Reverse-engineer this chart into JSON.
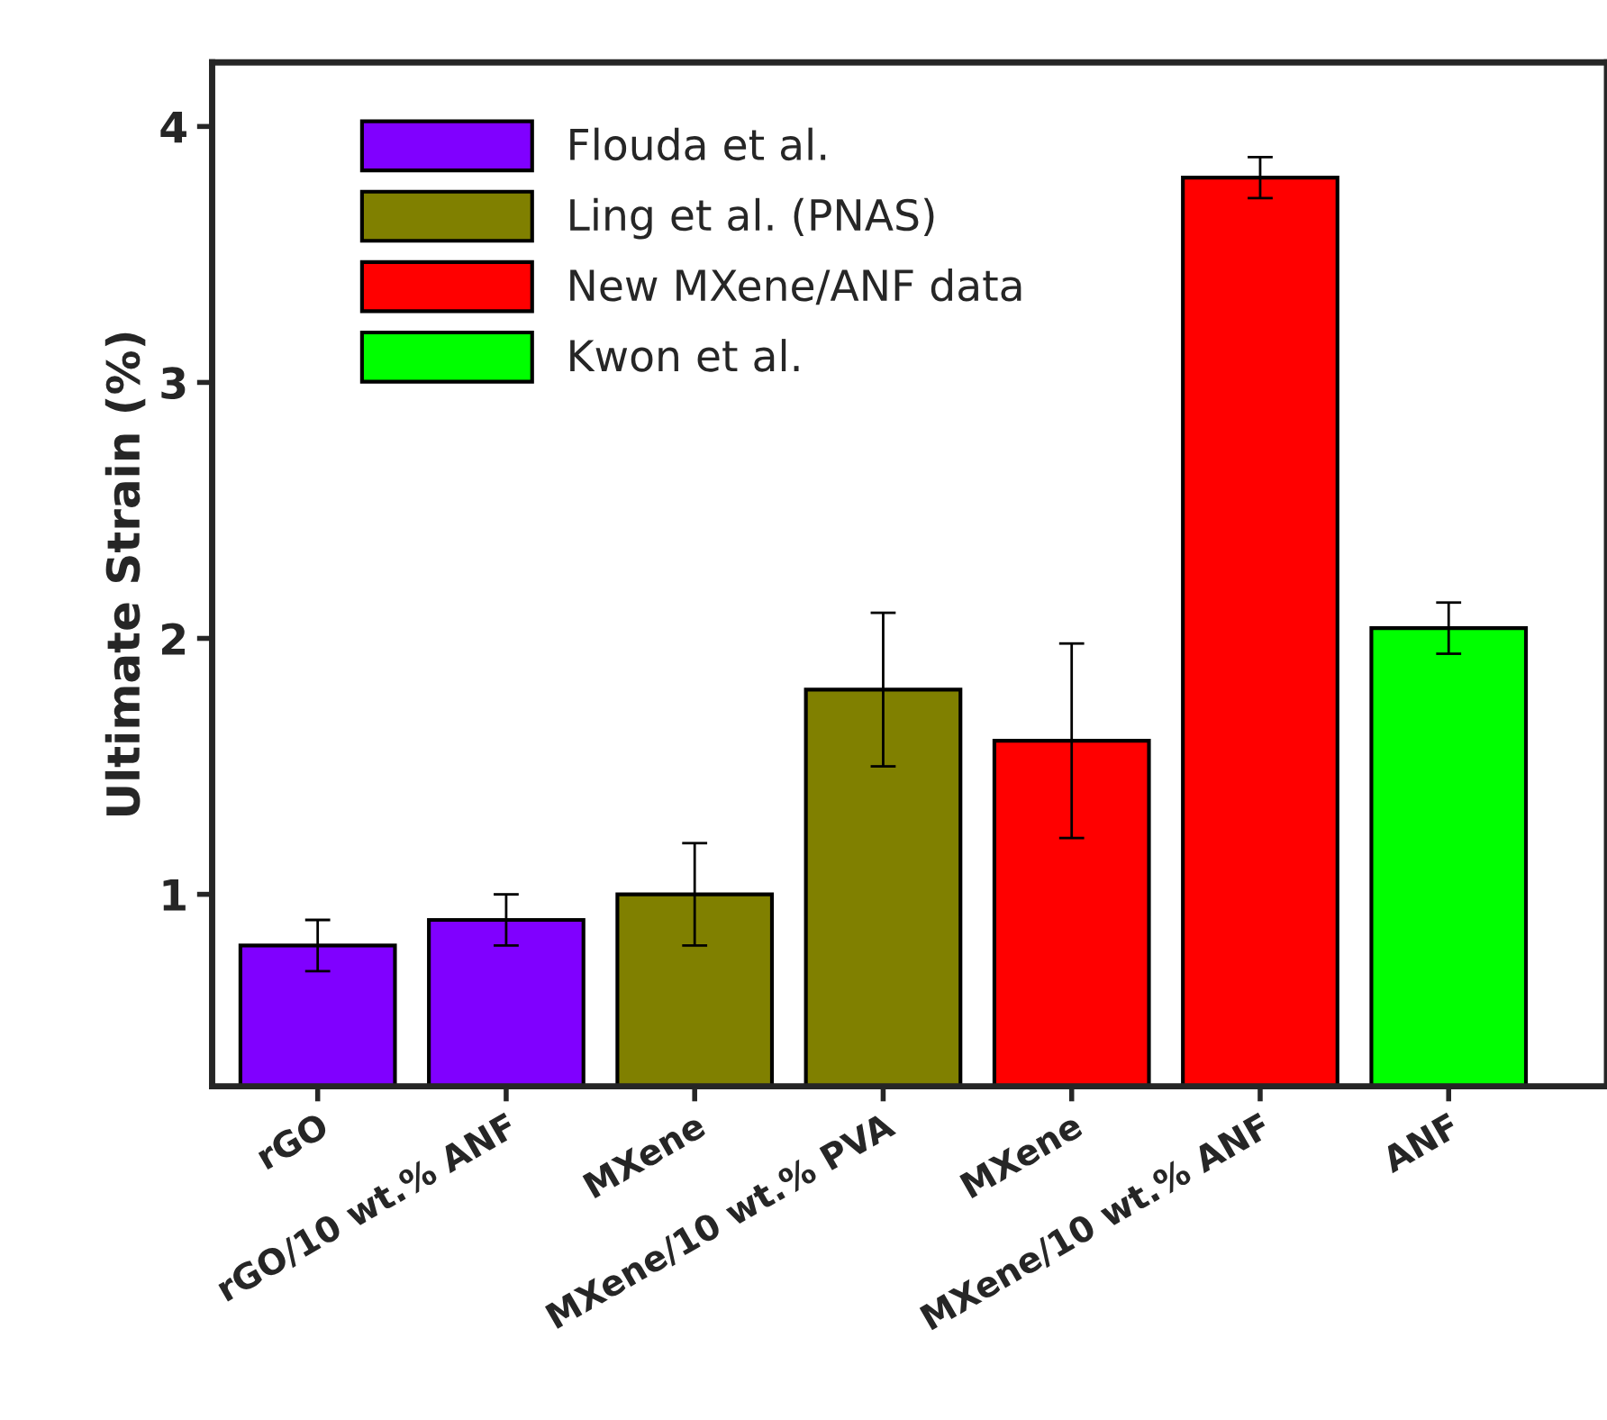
{
  "chart_data": {
    "type": "bar",
    "ylabel": "Ultimate Strain (%)",
    "categories": [
      "rGO",
      "rGO/10 wt.% ANF",
      "MXene",
      "MXene/10 wt.% PVA",
      "MXene",
      "MXene/10 wt.% ANF",
      "ANF"
    ],
    "series": [
      {
        "name": "Flouda et al.",
        "color": "#8000ff",
        "values": [
          0.8,
          0.9,
          null,
          null,
          null,
          null,
          null
        ],
        "errors": [
          0.1,
          0.1,
          null,
          null,
          null,
          null,
          null
        ]
      },
      {
        "name": "Ling et al. (PNAS)",
        "color": "#808000",
        "values": [
          null,
          null,
          1.0,
          1.8,
          null,
          null,
          null
        ],
        "errors": [
          null,
          null,
          0.2,
          0.3,
          null,
          null,
          null
        ]
      },
      {
        "name": "New MXene/ANF data",
        "color": "#ff0000",
        "values": [
          null,
          null,
          null,
          null,
          1.6,
          3.8,
          null
        ],
        "errors": [
          null,
          null,
          null,
          null,
          0.38,
          0.08,
          null
        ]
      },
      {
        "name": "Kwon et al.",
        "color": "#00ff00",
        "values": [
          null,
          null,
          null,
          null,
          null,
          null,
          2.04
        ],
        "errors": [
          null,
          null,
          null,
          null,
          null,
          null,
          0.1
        ]
      }
    ],
    "ylim": [
      0.25,
      4.25
    ],
    "yticks": [
      1,
      2,
      3,
      4
    ],
    "grid": false,
    "legend": "top left"
  }
}
